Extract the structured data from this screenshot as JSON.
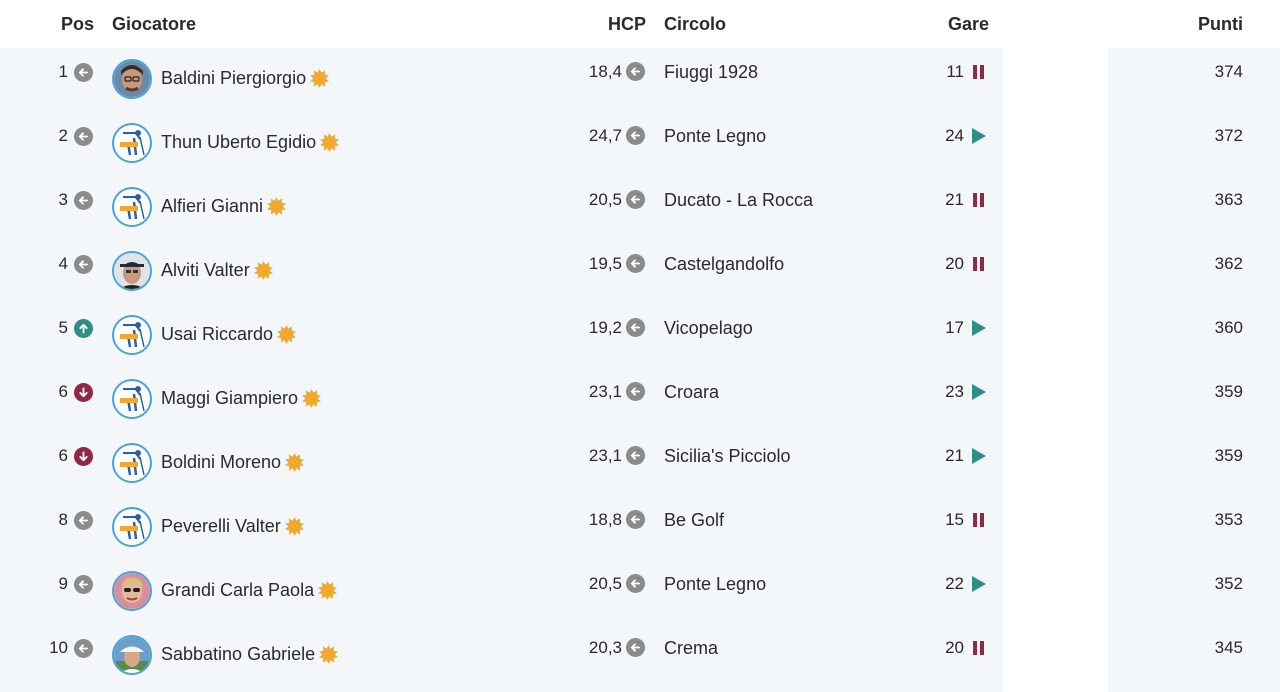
{
  "header": {
    "pos": "Pos",
    "player": "Giocatore",
    "hcp": "HCP",
    "club": "Circolo",
    "races": "Gare",
    "points": "Punti"
  },
  "colors": {
    "accent_blue": "#4aa3d6",
    "star": "#f0a830",
    "up": "#2e8f86",
    "down": "#8e2a45",
    "neutral": "#8c8c8c",
    "play": "#2e8f86",
    "pause": "#8e2a45"
  },
  "rows": [
    {
      "pos": "1",
      "trend": "same",
      "avatar": "photo",
      "name": "Baldini Piergiorgio",
      "hcp": "18,4",
      "club": "Fiuggi 1928",
      "races": "11",
      "status": "pause",
      "points": "374"
    },
    {
      "pos": "2",
      "trend": "same",
      "avatar": "logo",
      "name": "Thun Uberto Egidio",
      "hcp": "24,7",
      "club": "Ponte Legno",
      "races": "24",
      "status": "play",
      "points": "372"
    },
    {
      "pos": "3",
      "trend": "same",
      "avatar": "logo",
      "name": "Alfieri Gianni",
      "hcp": "20,5",
      "club": "Ducato - La Rocca",
      "races": "21",
      "status": "pause",
      "points": "363"
    },
    {
      "pos": "4",
      "trend": "same",
      "avatar": "photo",
      "name": "Alviti Valter",
      "hcp": "19,5",
      "club": "Castelgandolfo",
      "races": "20",
      "status": "pause",
      "points": "362"
    },
    {
      "pos": "5",
      "trend": "up",
      "avatar": "logo",
      "name": "Usai Riccardo",
      "hcp": "19,2",
      "club": "Vicopelago",
      "races": "17",
      "status": "play",
      "points": "360"
    },
    {
      "pos": "6",
      "trend": "down",
      "avatar": "logo",
      "name": "Maggi Giampiero",
      "hcp": "23,1",
      "club": "Croara",
      "races": "23",
      "status": "play",
      "points": "359"
    },
    {
      "pos": "6",
      "trend": "down",
      "avatar": "logo",
      "name": "Boldini Moreno",
      "hcp": "23,1",
      "club": "Sicilia's Picciolo",
      "races": "21",
      "status": "play",
      "points": "359"
    },
    {
      "pos": "8",
      "trend": "same",
      "avatar": "logo",
      "name": "Peverelli Valter",
      "hcp": "18,8",
      "club": "Be Golf",
      "races": "15",
      "status": "pause",
      "points": "353"
    },
    {
      "pos": "9",
      "trend": "same",
      "avatar": "photo",
      "name": "Grandi Carla Paola",
      "hcp": "20,5",
      "club": "Ponte Legno",
      "races": "22",
      "status": "play",
      "points": "352"
    },
    {
      "pos": "10",
      "trend": "same",
      "avatar": "photo",
      "name": "Sabbatino Gabriele",
      "hcp": "20,3",
      "club": "Crema",
      "races": "20",
      "status": "pause",
      "points": "345"
    }
  ]
}
